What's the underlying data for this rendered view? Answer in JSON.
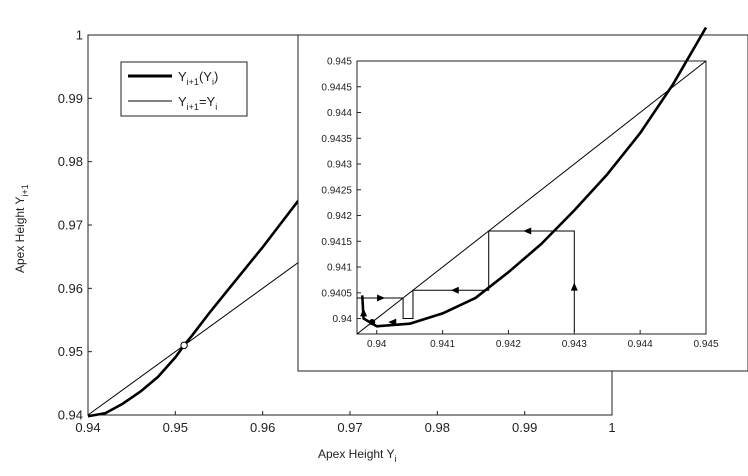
{
  "chart_data": [
    {
      "type": "line",
      "xlabel_main": "Apex Height Y",
      "xlabel_sub": "i",
      "ylabel_main": "Apex Height Y",
      "ylabel_sub": "i+1",
      "xlim": [
        0.94,
        1.0
      ],
      "ylim": [
        0.94,
        1.0
      ],
      "xticks": [
        "0.94",
        "0.95",
        "0.96",
        "0.97",
        "0.98",
        "0.99",
        "1"
      ],
      "yticks": [
        "0.94",
        "0.95",
        "0.96",
        "0.97",
        "0.98",
        "0.99",
        "1"
      ],
      "legend": {
        "position": "top-left",
        "entries": [
          {
            "main": "Y",
            "sub": "i+1",
            "tail": "(Y",
            "sub2": "i",
            "close": ")",
            "style": "thick"
          },
          {
            "main": "Y",
            "sub": "i+1",
            "tail": "=Y",
            "sub2": "i",
            "close": "",
            "style": "thin"
          }
        ]
      },
      "series": [
        {
          "style": "thick",
          "x": [
            0.94,
            0.942,
            0.944,
            0.946,
            0.948,
            0.95,
            0.951,
            0.952,
            0.954,
            0.956,
            0.958,
            0.96,
            0.962,
            0.964,
            0.965,
            0.968
          ],
          "y": [
            0.9398,
            0.9403,
            0.9418,
            0.9437,
            0.946,
            0.9491,
            0.951,
            0.9527,
            0.9563,
            0.9597,
            0.9631,
            0.9665,
            0.9701,
            0.9737,
            0.9755,
            0.981
          ]
        },
        {
          "style": "thin",
          "x": [
            0.94,
            1.0
          ],
          "y": [
            0.94,
            1.0
          ]
        }
      ],
      "fixed_point": [
        0.951,
        0.951
      ]
    },
    {
      "type": "line",
      "xlim": [
        0.9397,
        0.945
      ],
      "ylim": [
        0.9397,
        0.945
      ],
      "xticks": [
        "0.94",
        "0.941",
        "0.942",
        "0.943",
        "0.944",
        "0.945"
      ],
      "yticks": [
        "0.94",
        "0.9405",
        "0.941",
        "0.9415",
        "0.942",
        "0.9425",
        "0.943",
        "0.9435",
        "0.944",
        "0.9445",
        "0.945"
      ],
      "series": [
        {
          "style": "thick",
          "x": [
            0.93978,
            0.9398,
            0.94,
            0.9405,
            0.941,
            0.9415,
            0.942,
            0.9425,
            0.943,
            0.9435,
            0.944,
            0.9445,
            0.945
          ],
          "y": [
            0.94045,
            0.94,
            0.93985,
            0.9399,
            0.9401,
            0.9404,
            0.9409,
            0.94145,
            0.9421,
            0.9428,
            0.9436,
            0.94455,
            0.94565
          ]
        },
        {
          "style": "thin",
          "x": [
            0.9397,
            0.945
          ],
          "y": [
            0.9397,
            0.945
          ]
        }
      ],
      "cobweb": [
        [
          0.943,
          0.93975
        ],
        [
          0.943,
          0.9417
        ],
        [
          0.9417,
          0.9417
        ],
        [
          0.9417,
          0.94055
        ],
        [
          0.94055,
          0.94055
        ],
        [
          0.94055,
          0.94
        ],
        [
          0.9404,
          0.94
        ],
        [
          0.9404,
          0.9404
        ],
        [
          0.9397,
          0.9404
        ]
      ],
      "arrows": [
        {
          "at": [
            0.943,
            0.9406
          ],
          "dir": "up"
        },
        {
          "at": [
            0.9423,
            0.9417
          ],
          "dir": "left"
        },
        {
          "at": [
            0.9412,
            0.94055
          ],
          "dir": "left"
        },
        {
          "at": [
            0.94025,
            0.93993
          ],
          "dir": "left"
        },
        {
          "at": [
            0.94005,
            0.9404
          ],
          "dir": "right"
        },
        {
          "at": [
            0.9398,
            0.9401
          ],
          "dir": "up"
        }
      ],
      "fixed_point": [
        0.93993,
        0.93993
      ]
    }
  ]
}
